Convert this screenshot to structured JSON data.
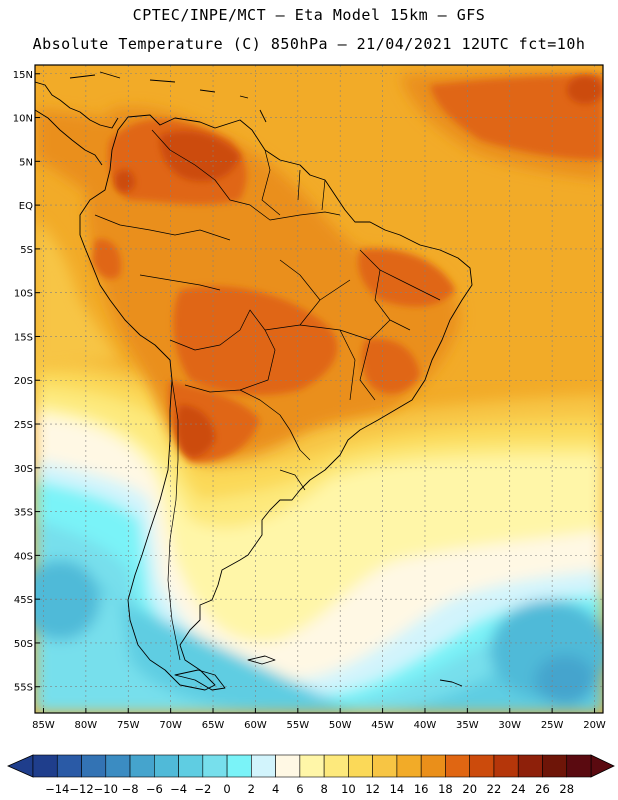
{
  "header": {
    "line1": "CPTEC/INPE/MCT –  Eta Model 15km – GFS",
    "line2": "Absolute Temperature (C) 850hPa – 21/04/2021 12UTC fct=10h"
  },
  "map": {
    "lon_range": [
      -86,
      -19
    ],
    "lat_range": [
      -58,
      16
    ],
    "lat_ticks": [
      {
        "value": 15,
        "label": "15N"
      },
      {
        "value": 10,
        "label": "10N"
      },
      {
        "value": 5,
        "label": "5N"
      },
      {
        "value": 0,
        "label": "EQ"
      },
      {
        "value": -5,
        "label": "5S"
      },
      {
        "value": -10,
        "label": "10S"
      },
      {
        "value": -15,
        "label": "15S"
      },
      {
        "value": -20,
        "label": "20S"
      },
      {
        "value": -25,
        "label": "25S"
      },
      {
        "value": -30,
        "label": "30S"
      },
      {
        "value": -35,
        "label": "35S"
      },
      {
        "value": -40,
        "label": "40S"
      },
      {
        "value": -45,
        "label": "45S"
      },
      {
        "value": -50,
        "label": "50S"
      },
      {
        "value": -55,
        "label": "55S"
      }
    ],
    "lon_ticks": [
      {
        "value": -85,
        "label": "85W"
      },
      {
        "value": -80,
        "label": "80W"
      },
      {
        "value": -75,
        "label": "75W"
      },
      {
        "value": -70,
        "label": "70W"
      },
      {
        "value": -65,
        "label": "65W"
      },
      {
        "value": -60,
        "label": "60W"
      },
      {
        "value": -55,
        "label": "55W"
      },
      {
        "value": -50,
        "label": "50W"
      },
      {
        "value": -45,
        "label": "45W"
      },
      {
        "value": -40,
        "label": "40W"
      },
      {
        "value": -35,
        "label": "35W"
      },
      {
        "value": -30,
        "label": "30W"
      },
      {
        "value": -25,
        "label": "25W"
      },
      {
        "value": -20,
        "label": "20W"
      }
    ]
  },
  "colorbar": {
    "labels": [
      "-14",
      "-12",
      "-10",
      "-8",
      "-6",
      "-4",
      "-2",
      "0",
      "2",
      "4",
      "6",
      "8",
      "10",
      "12",
      "14",
      "16",
      "18",
      "20",
      "22",
      "24",
      "26",
      "28"
    ],
    "colors": [
      "#1f3e8c",
      "#2a5aa6",
      "#3373b4",
      "#3b8cc2",
      "#45a4cd",
      "#50bad8",
      "#5fcde2",
      "#77dfec",
      "#7af3f8",
      "#d2f4fc",
      "#fff8e4",
      "#fff6a8",
      "#fde97c",
      "#fbd958",
      "#f7c544",
      "#f2ab28",
      "#ea8f1a",
      "#e06612",
      "#cc4b0c",
      "#b5360a",
      "#8e200a",
      "#6e1508",
      "#5a0a10"
    ]
  }
}
